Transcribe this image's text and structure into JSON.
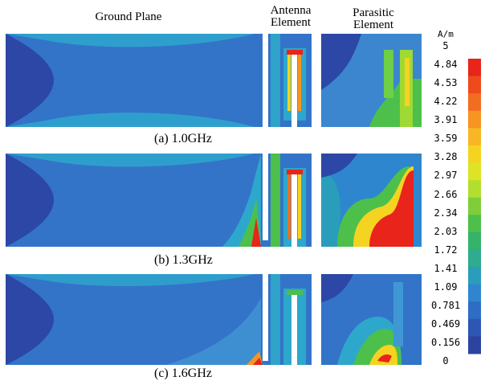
{
  "headers": {
    "ground_plane": "Ground Plane",
    "antenna_line1": "Antenna",
    "antenna_line2": "Element",
    "parasitic_line1": "Parasitic",
    "parasitic_line2": "Element"
  },
  "rows": [
    {
      "caption": "(a) 1.0GHz"
    },
    {
      "caption": "(b) 1.3GHz"
    },
    {
      "caption": "(c) 1.6GHz"
    }
  ],
  "colorbar": {
    "unit": "A/m",
    "ticks": [
      "5",
      "4.84",
      "4.53",
      "4.22",
      "3.91",
      "3.59",
      "3.28",
      "2.97",
      "2.66",
      "2.34",
      "2.03",
      "1.72",
      "1.41",
      "1.09",
      "0.781",
      "0.469",
      "0.156",
      "0"
    ],
    "colors": [
      "#e8241b",
      "#ef4a1c",
      "#f26d1f",
      "#f79422",
      "#f9b624",
      "#f4d321",
      "#dde425",
      "#b2df2f",
      "#7fce39",
      "#4cc04a",
      "#34b369",
      "#2fab8f",
      "#2a9dbb",
      "#2f86cf",
      "#2f6dc4",
      "#2e57b3",
      "#2c44a0"
    ]
  }
}
